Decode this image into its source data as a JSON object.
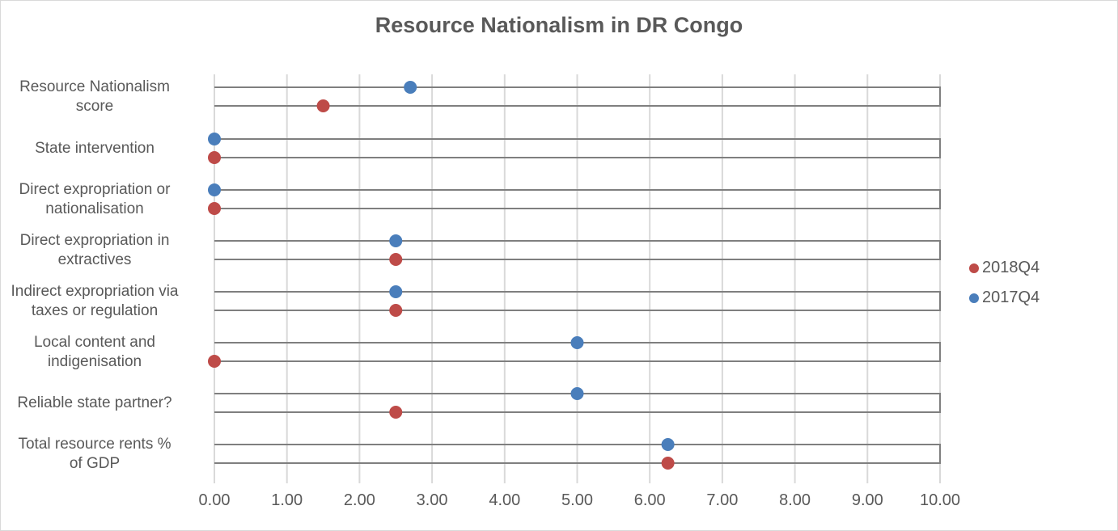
{
  "chart_data": {
    "type": "scatter",
    "subtype": "dot-plot",
    "title": "Resource Nationalism in DR Congo",
    "xlabel": "",
    "ylabel": "",
    "xlim": [
      0,
      10
    ],
    "x_ticks": [
      "0.00",
      "1.00",
      "2.00",
      "3.00",
      "4.00",
      "5.00",
      "6.00",
      "7.00",
      "8.00",
      "9.00",
      "10.00"
    ],
    "grid": "vertical",
    "legend_position": "right",
    "categories": [
      "Resource Nationalism score",
      "State intervention",
      "Direct expropriation or nationalisation",
      "Direct expropriation in extractives",
      "Indirect expropriation via taxes or regulation",
      "Local content and indigenisation",
      "Reliable state partner?",
      "Total resource rents % of GDP"
    ],
    "series": [
      {
        "name": "2017Q4",
        "color": "#4a7ebb",
        "values": [
          2.7,
          0.0,
          0.0,
          2.5,
          2.5,
          5.0,
          5.0,
          6.25
        ]
      },
      {
        "name": "2018Q4",
        "color": "#be4b48",
        "values": [
          1.5,
          0.0,
          0.0,
          2.5,
          2.5,
          0.0,
          2.5,
          6.25
        ]
      }
    ]
  },
  "labels": [
    [
      "Resource Nationalism",
      "score"
    ],
    [
      "State intervention"
    ],
    [
      "Direct expropriation or",
      "nationalisation"
    ],
    [
      "Direct expropriation in",
      "extractives"
    ],
    [
      "Indirect expropriation via",
      "taxes or regulation"
    ],
    [
      "Local content and",
      "indigenisation"
    ],
    [
      "Reliable state partner?"
    ],
    [
      "Total resource rents %",
      "of GDP"
    ]
  ],
  "legend": [
    {
      "label": "2018Q4",
      "color": "#be4b48"
    },
    {
      "label": "2017Q4",
      "color": "#4a7ebb"
    }
  ]
}
